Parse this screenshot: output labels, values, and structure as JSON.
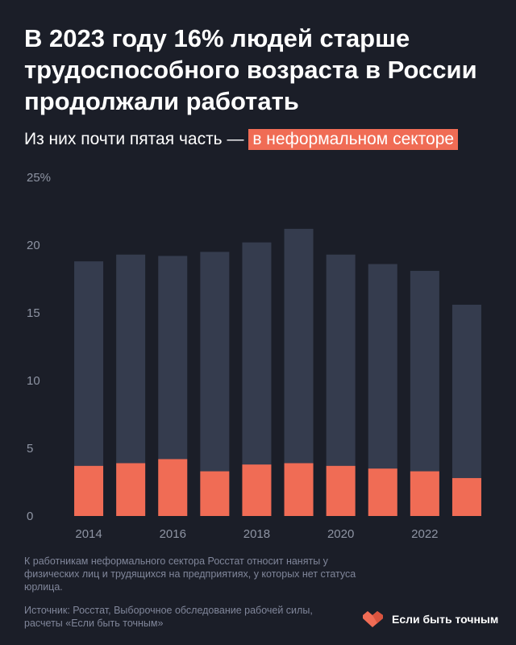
{
  "title": "В 2023 году 16% людей старше трудоспособного возраста в России продолжали работать",
  "subtitle": {
    "text": "Из них почти пятая часть —",
    "highlight": "в неформальном секторе"
  },
  "note": "К работникам неформального сектора Росстат относит наняты у физических лиц и трудящихся на предприятиях, у которых нет статуса юрлица.",
  "source": "Источник: Росстат, Выборочное обследование рабочей силы, расчеты «Если быть точным»",
  "brand": {
    "name": "Если быть точным",
    "icon": "double-heart-logo-icon"
  },
  "colors": {
    "background": "#1b1e28",
    "total_bar": "#353c4e",
    "informal_bar": "#f06c55",
    "text_muted": "#8e94a3"
  },
  "chart_data": {
    "type": "bar",
    "stacked_overlay": true,
    "categories": [
      "2014",
      "2015",
      "2016",
      "2017",
      "2018",
      "2019",
      "2020",
      "2021",
      "2022",
      "2023"
    ],
    "x_tick_labels": [
      "2014",
      "",
      "2016",
      "",
      "2018",
      "",
      "2020",
      "",
      "2022",
      ""
    ],
    "series": [
      {
        "values": [
          18.8,
          19.3,
          19.2,
          19.5,
          20.2,
          21.2,
          19.3,
          18.6,
          18.1,
          15.6
        ]
      },
      {
        "values": [
          3.7,
          3.9,
          4.2,
          3.3,
          3.8,
          3.9,
          3.7,
          3.5,
          3.3,
          2.8
        ]
      }
    ],
    "ylim": [
      0,
      25
    ],
    "y_ticks": [
      0,
      5,
      10,
      15,
      20,
      25
    ],
    "y_tick_labels": [
      "0",
      "5",
      "10",
      "15",
      "20",
      "25%"
    ],
    "grid": false,
    "xlabel": "",
    "ylabel": ""
  }
}
